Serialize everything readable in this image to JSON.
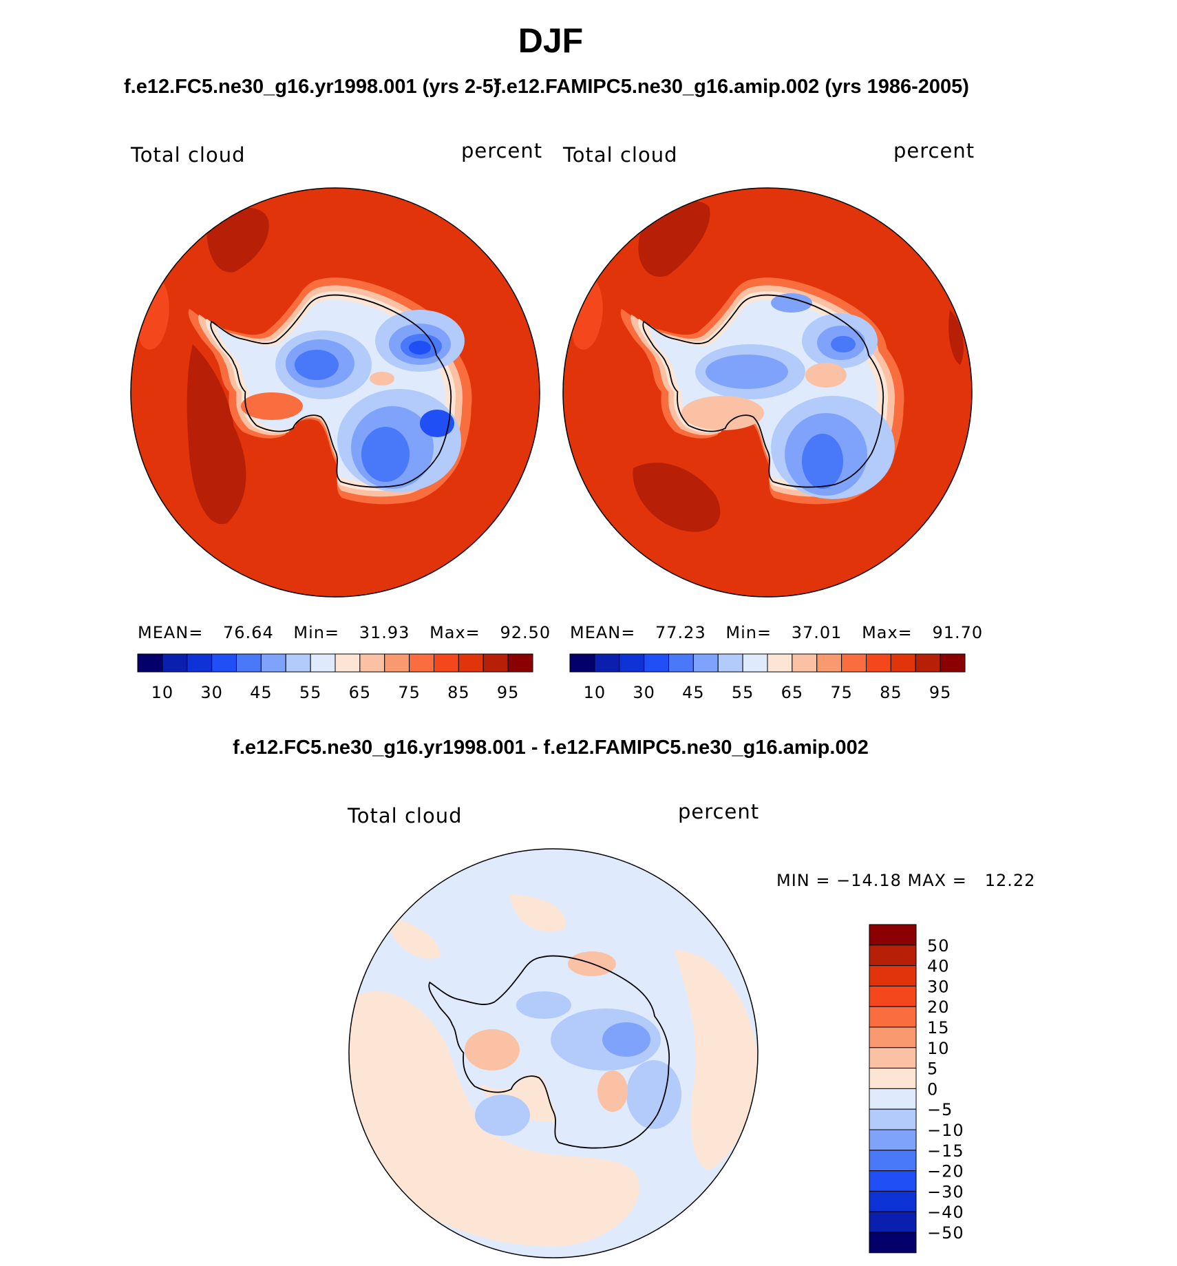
{
  "figure": {
    "title": "DJF",
    "top_left_title": "f.e12.FC5.ne30_g16.yr1998.001 (yrs 2-5)",
    "top_right_title": "f.e12.FAMIPC5.ne30_g16.amip.002 (yrs 1986-2005)",
    "diff_title": "f.e12.FC5.ne30_g16.yr1998.001 - f.e12.FAMIPC5.ne30_g16.amip.002"
  },
  "panels": [
    {
      "id": "model",
      "left_label": "Total cloud",
      "right_label": "percent",
      "stats": {
        "mean_label": "MEAN=",
        "mean": "76.64",
        "min_label": "Min=",
        "min": "31.93",
        "max_label": "Max=",
        "max": "92.50"
      }
    },
    {
      "id": "obs",
      "left_label": "Total cloud",
      "right_label": "percent",
      "stats": {
        "mean_label": "MEAN=",
        "mean": "77.23",
        "min_label": "Min=",
        "min": "37.01",
        "max_label": "Max=",
        "max": "91.70"
      }
    },
    {
      "id": "diff",
      "left_label": "Total cloud",
      "right_label": "percent",
      "stats_text": "MIN = −14.18 MAX =   12.22"
    }
  ],
  "colorbar_main": {
    "colors": [
      "#03006b",
      "#0a1fae",
      "#0d32d5",
      "#1f4ff5",
      "#4978f8",
      "#7fa3fa",
      "#b2cbfb",
      "#dfeafc",
      "#fde5d5",
      "#fbc1a4",
      "#f9996f",
      "#f96d3e",
      "#f4471c",
      "#e2340b",
      "#b72006",
      "#8b0000"
    ],
    "labels": [
      "10",
      "30",
      "45",
      "55",
      "65",
      "75",
      "85",
      "95"
    ]
  },
  "colorbar_diff": {
    "colors": [
      "#8b0000",
      "#b72006",
      "#e2340b",
      "#f4471c",
      "#f96d3e",
      "#f9996f",
      "#fbc1a4",
      "#fde5d5",
      "#dfeafc",
      "#b2cbfb",
      "#7fa3fa",
      "#4978f8",
      "#1f4ff5",
      "#0d32d5",
      "#0a1fae",
      "#03006b"
    ],
    "labels": [
      "50",
      "40",
      "30",
      "20",
      "15",
      "10",
      "5",
      "0",
      "−5",
      "−10",
      "−15",
      "−20",
      "−30",
      "−40",
      "−50"
    ]
  },
  "map_colors": {
    "ocean_main": "#e2340b",
    "ocean_dark": "#b72006",
    "ocean_light": "#f4471c",
    "coast_a": "#f96d3e",
    "coast_b": "#fbc1a4",
    "coast_c": "#fde5d5",
    "ice_a": "#dfeafc",
    "ice_b": "#b2cbfb",
    "ice_c": "#7fa3fa",
    "ice_d": "#4978f8",
    "ice_e": "#1f4ff5",
    "diff_pos": "#fde5d5",
    "diff_neg": "#dfeafc",
    "diff_pos2": "#fbc1a4",
    "diff_neg2": "#b2cbfb",
    "diff_neg3": "#7fa3fa"
  }
}
